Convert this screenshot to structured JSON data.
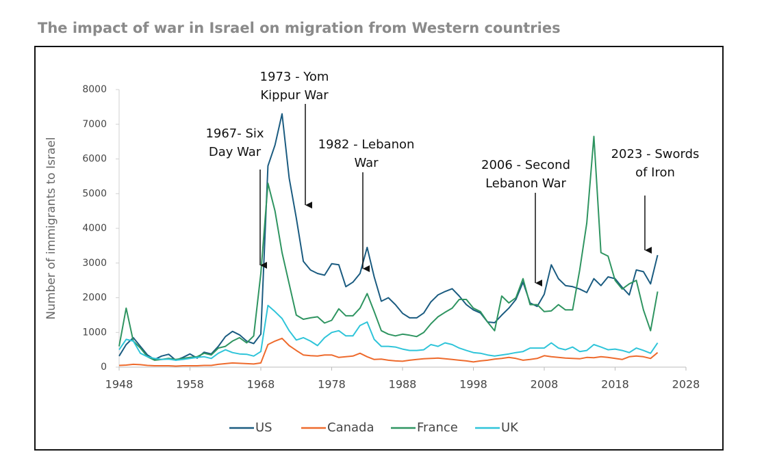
{
  "chart_data": {
    "type": "line",
    "title": "The impact of war in Israel on migration from Western countries",
    "y_label": "Number of immigrants to Israel",
    "x": [
      1948,
      1949,
      1950,
      1951,
      1952,
      1953,
      1954,
      1955,
      1956,
      1957,
      1958,
      1959,
      1960,
      1961,
      1962,
      1963,
      1964,
      1965,
      1966,
      1967,
      1968,
      1969,
      1970,
      1971,
      1972,
      1973,
      1974,
      1975,
      1976,
      1977,
      1978,
      1979,
      1980,
      1981,
      1982,
      1983,
      1984,
      1985,
      1986,
      1987,
      1988,
      1989,
      1990,
      1991,
      1992,
      1993,
      1994,
      1995,
      1996,
      1997,
      1998,
      1999,
      2000,
      2001,
      2002,
      2003,
      2004,
      2005,
      2006,
      2007,
      2008,
      2009,
      2010,
      2011,
      2012,
      2013,
      2014,
      2015,
      2016,
      2017,
      2018,
      2019,
      2020,
      2021,
      2022,
      2023,
      2024
    ],
    "series": [
      {
        "name": "US",
        "color": "#1a5b80",
        "values": [
          320,
          650,
          850,
          600,
          350,
          220,
          320,
          370,
          200,
          280,
          380,
          260,
          430,
          380,
          600,
          880,
          1030,
          930,
          750,
          680,
          950,
          5800,
          6400,
          7300,
          5450,
          4300,
          3050,
          2800,
          2700,
          2650,
          2980,
          2950,
          2320,
          2450,
          2700,
          3450,
          2600,
          1900,
          2000,
          1800,
          1550,
          1420,
          1420,
          1560,
          1880,
          2080,
          2180,
          2260,
          2050,
          1800,
          1650,
          1560,
          1300,
          1280,
          1500,
          1700,
          1950,
          2450,
          1850,
          1750,
          2100,
          2950,
          2550,
          2350,
          2320,
          2250,
          2150,
          2550,
          2350,
          2600,
          2550,
          2300,
          2080,
          2800,
          2750,
          2400,
          3230
        ]
      },
      {
        "name": "Canada",
        "color": "#ee6a2c",
        "values": [
          50,
          60,
          80,
          70,
          50,
          40,
          40,
          40,
          30,
          40,
          40,
          40,
          50,
          50,
          80,
          100,
          120,
          110,
          100,
          90,
          120,
          650,
          750,
          830,
          620,
          480,
          350,
          330,
          320,
          350,
          350,
          280,
          300,
          320,
          400,
          300,
          220,
          230,
          200,
          180,
          170,
          200,
          220,
          240,
          250,
          260,
          240,
          220,
          200,
          180,
          150,
          180,
          200,
          230,
          250,
          280,
          250,
          200,
          220,
          250,
          330,
          300,
          280,
          260,
          250,
          240,
          280,
          270,
          300,
          280,
          250,
          220,
          300,
          320,
          300,
          250,
          420
        ]
      },
      {
        "name": "France",
        "color": "#2e9460",
        "values": [
          600,
          1700,
          750,
          550,
          300,
          200,
          220,
          250,
          220,
          250,
          280,
          300,
          400,
          350,
          550,
          600,
          750,
          850,
          700,
          900,
          2700,
          5300,
          4500,
          3300,
          2400,
          1500,
          1380,
          1420,
          1450,
          1270,
          1350,
          1680,
          1480,
          1480,
          1700,
          2120,
          1600,
          1050,
          950,
          900,
          950,
          920,
          880,
          1000,
          1250,
          1450,
          1580,
          1700,
          1950,
          1950,
          1700,
          1600,
          1300,
          1050,
          2050,
          1850,
          2000,
          2550,
          1800,
          1800,
          1600,
          1620,
          1800,
          1650,
          1650,
          2800,
          4150,
          6650,
          3300,
          3200,
          2500,
          2250,
          2400,
          2500,
          1650,
          1050,
          2180
        ]
      },
      {
        "name": "UK",
        "color": "#2ec4d9",
        "values": [
          500,
          800,
          750,
          400,
          300,
          250,
          220,
          230,
          200,
          220,
          250,
          280,
          300,
          250,
          400,
          500,
          420,
          380,
          370,
          320,
          450,
          1780,
          1600,
          1400,
          1050,
          780,
          850,
          750,
          620,
          850,
          1000,
          1050,
          900,
          900,
          1200,
          1300,
          800,
          600,
          600,
          580,
          520,
          480,
          480,
          500,
          650,
          600,
          700,
          650,
          550,
          480,
          420,
          400,
          350,
          320,
          350,
          380,
          420,
          450,
          550,
          550,
          550,
          700,
          550,
          500,
          580,
          450,
          480,
          650,
          580,
          500,
          520,
          480,
          420,
          550,
          480,
          400,
          700
        ]
      }
    ],
    "xlim": [
      1948,
      2028
    ],
    "xticks": [
      1948,
      1958,
      1968,
      1978,
      1988,
      1998,
      2008,
      2018,
      2028
    ],
    "ylim": [
      0,
      8000
    ],
    "yticks": [
      0,
      1000,
      2000,
      3000,
      4000,
      5000,
      6000,
      7000,
      8000
    ],
    "annotations": [
      [
        "1967- Six",
        "Day War"
      ],
      [
        "1973 - Yom",
        "Kippur War"
      ],
      [
        "1982 - Lebanon",
        "War"
      ],
      [
        "2006 - Second",
        "Lebanon War"
      ],
      [
        "2023 - Swords",
        "of Iron"
      ]
    ],
    "legend": "bottom"
  }
}
